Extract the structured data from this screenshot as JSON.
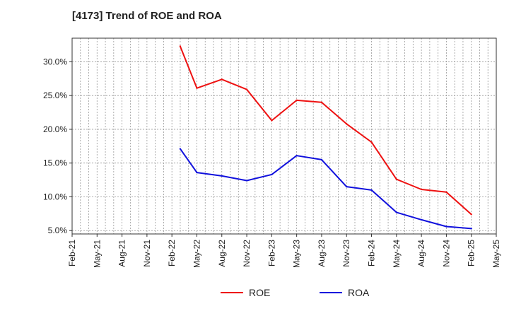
{
  "chart_data": {
    "type": "line",
    "title": "[4173]  Trend of ROE and ROA",
    "xlabel": "",
    "ylabel": "",
    "x_tick_labels": [
      "Feb-21",
      "May-21",
      "Aug-21",
      "Nov-21",
      "Feb-22",
      "May-22",
      "Aug-22",
      "Nov-22",
      "Feb-23",
      "May-23",
      "Aug-23",
      "Nov-23",
      "Feb-24",
      "May-24",
      "Aug-24",
      "Nov-24",
      "Feb-25",
      "May-25"
    ],
    "y_tick_labels": [
      "5.0%",
      "10.0%",
      "15.0%",
      "20.0%",
      "25.0%",
      "30.0%"
    ],
    "y_ticks": [
      5,
      10,
      15,
      20,
      25,
      30
    ],
    "ylim": [
      4.5,
      33.5
    ],
    "xlim": [
      "2021-02",
      "2025-05"
    ],
    "grid": true,
    "legend_position": "bottom-center",
    "x": [
      "2022-03",
      "2022-05",
      "2022-08",
      "2022-11",
      "2023-02",
      "2023-05",
      "2023-08",
      "2023-11",
      "2024-02",
      "2024-05",
      "2024-08",
      "2024-11",
      "2025-02"
    ],
    "series": [
      {
        "name": "ROE",
        "color": "#ee1111",
        "values": [
          32.3,
          26.1,
          27.4,
          25.9,
          21.3,
          24.3,
          24.0,
          20.8,
          18.1,
          12.6,
          11.1,
          10.7,
          7.4
        ]
      },
      {
        "name": "ROA",
        "color": "#1111dd",
        "values": [
          17.1,
          13.6,
          13.1,
          12.4,
          13.3,
          16.1,
          15.5,
          11.5,
          11.0,
          7.7,
          6.6,
          5.6,
          5.3
        ]
      }
    ]
  }
}
